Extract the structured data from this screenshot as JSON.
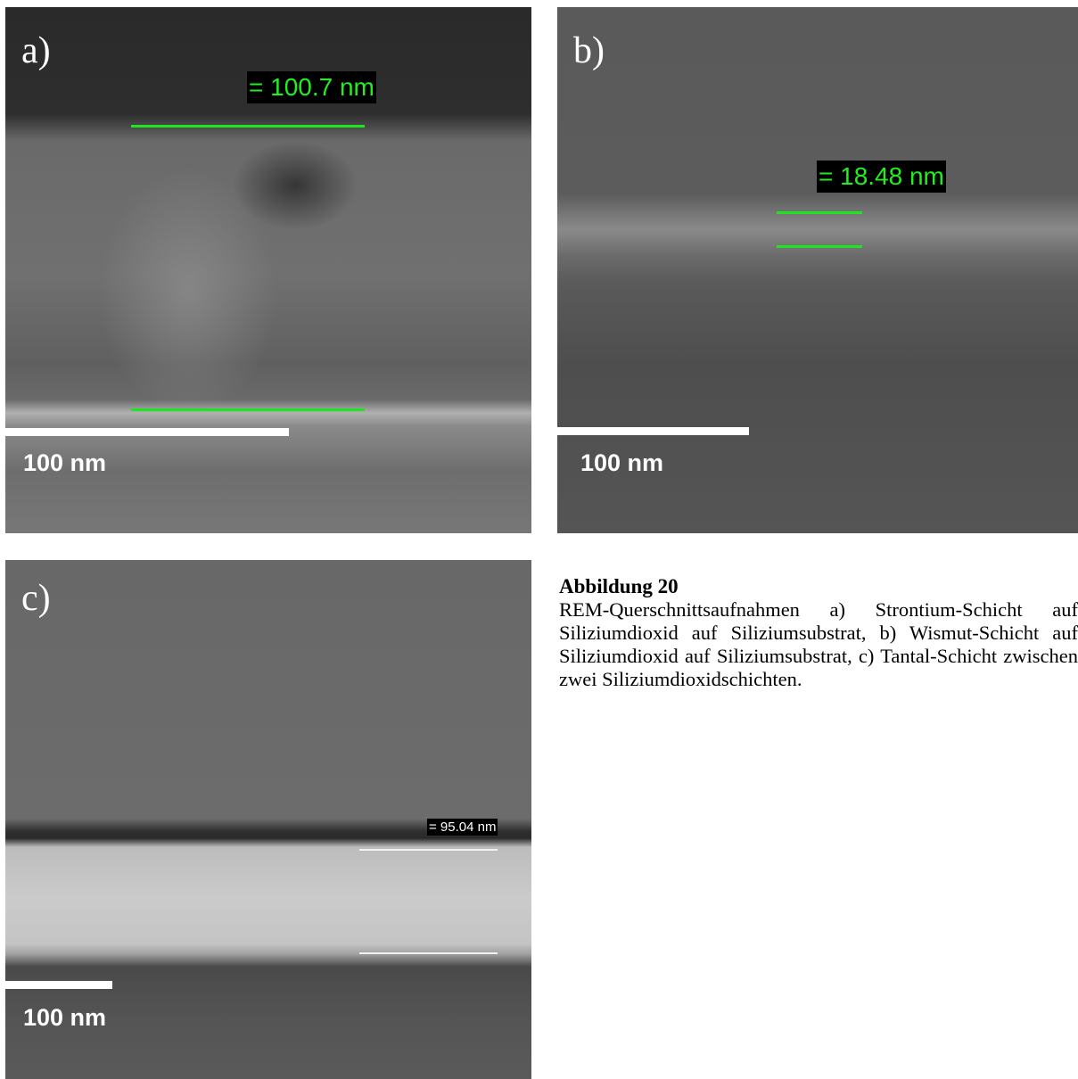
{
  "panels": [
    {
      "label": "a)",
      "measurement": "= 100.7 nm",
      "scale": "100 nm"
    },
    {
      "label": "b)",
      "measurement": "= 18.48 nm",
      "scale": "100 nm"
    },
    {
      "label": "c)",
      "measurement": "= 95.04 nm",
      "scale": "100 nm"
    }
  ],
  "caption": {
    "title": "Abbildung 20",
    "text": "REM-Querschnittsaufnahmen a) Strontium-Schicht auf Siliziumdioxid auf Siliziumsubstrat, b) Wismut-Schicht auf Siliziumdioxid auf Siliziumsubstrat, c) Tantal-Schicht zwischen zwei Siliziumdioxidschichten."
  }
}
